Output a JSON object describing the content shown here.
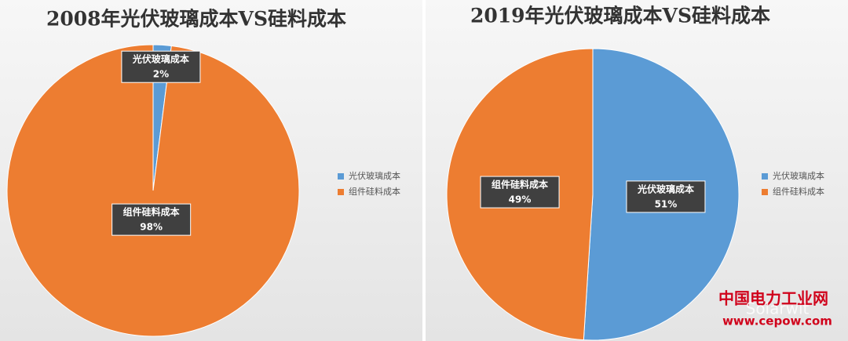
{
  "chart_data": [
    {
      "type": "pie",
      "title": "2008年光伏玻璃成本VS硅料成本",
      "categories": [
        "光伏玻璃成本",
        "组件硅料成本"
      ],
      "values": [
        2,
        98
      ],
      "value_labels": [
        "2%",
        "98%"
      ],
      "colors": [
        "#5b9bd5",
        "#ed7d31"
      ]
    },
    {
      "type": "pie",
      "title": "2019年光伏玻璃成本VS硅料成本",
      "categories": [
        "光伏玻璃成本",
        "组件硅料成本"
      ],
      "values": [
        51,
        49
      ],
      "value_labels": [
        "51%",
        "49%"
      ],
      "colors": [
        "#5b9bd5",
        "#ed7d31"
      ]
    }
  ],
  "watermark": {
    "site": "中国电力工业网",
    "brand": "Solarwit",
    "url": "www.cepow.com"
  }
}
